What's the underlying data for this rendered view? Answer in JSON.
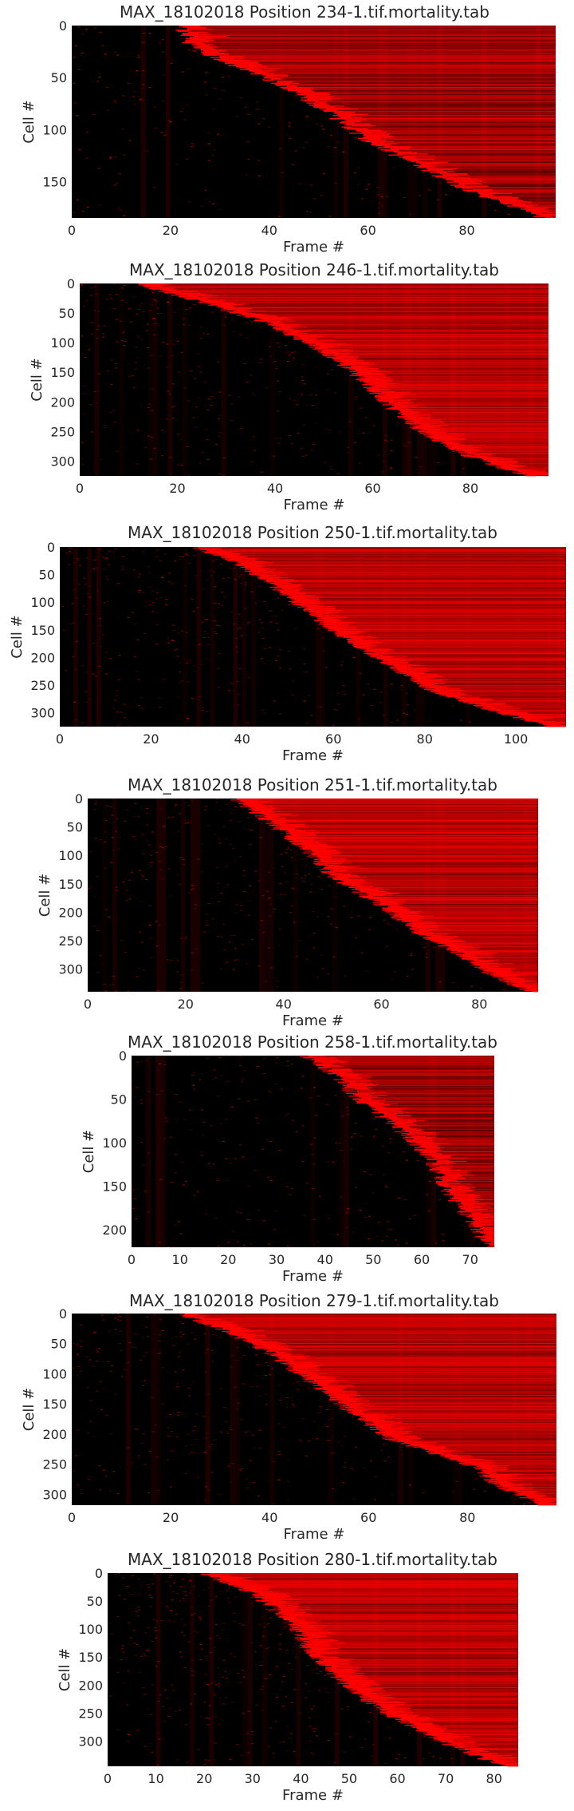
{
  "colors": {
    "background": "#000000",
    "event": "#ff0000"
  },
  "chart_data": [
    {
      "type": "heatmap",
      "title": "MAX_18102018 Position 234-1.tif.mortality.tab",
      "xlabel": "Frame #",
      "ylabel": "Cell #",
      "xlim": [
        0,
        98
      ],
      "ylim": [
        0,
        185
      ],
      "xticks": [
        0,
        20,
        40,
        60,
        80
      ],
      "yticks": [
        0,
        50,
        100,
        150
      ],
      "onset_curve": [
        [
          0,
          22
        ],
        [
          0.1,
          24
        ],
        [
          0.2,
          32
        ],
        [
          0.3,
          42
        ],
        [
          0.45,
          52
        ],
        [
          0.6,
          60
        ],
        [
          0.75,
          72
        ],
        [
          0.85,
          80
        ],
        [
          1.0,
          96
        ]
      ]
    },
    {
      "type": "heatmap",
      "title": "MAX_18102018 Position 246-1.tif.mortality.tab",
      "xlabel": "Frame #",
      "ylabel": "Cell #",
      "xlim": [
        0,
        96
      ],
      "ylim": [
        0,
        325
      ],
      "xticks": [
        0,
        20,
        40,
        60,
        80
      ],
      "yticks": [
        0,
        50,
        100,
        150,
        200,
        250,
        300
      ],
      "onset_curve": [
        [
          0,
          12
        ],
        [
          0.1,
          26
        ],
        [
          0.2,
          38
        ],
        [
          0.35,
          50
        ],
        [
          0.5,
          58
        ],
        [
          0.65,
          64
        ],
        [
          0.8,
          72
        ],
        [
          0.9,
          80
        ],
        [
          1.0,
          92
        ]
      ]
    },
    {
      "type": "heatmap",
      "title": "MAX_18102018 Position 250-1.tif.mortality.tab",
      "xlabel": "Frame #",
      "ylabel": "Cell #",
      "xlim": [
        0,
        111
      ],
      "ylim": [
        0,
        325
      ],
      "xticks": [
        0,
        20,
        40,
        60,
        80,
        100
      ],
      "yticks": [
        0,
        50,
        100,
        150,
        200,
        250,
        300
      ],
      "onset_curve": [
        [
          0,
          30
        ],
        [
          0.1,
          40
        ],
        [
          0.2,
          46
        ],
        [
          0.35,
          54
        ],
        [
          0.5,
          62
        ],
        [
          0.65,
          72
        ],
        [
          0.8,
          82
        ],
        [
          0.9,
          94
        ],
        [
          1.0,
          108
        ]
      ]
    },
    {
      "type": "heatmap",
      "title": "MAX_18102018 Position 251-1.tif.mortality.tab",
      "xlabel": "Frame #",
      "ylabel": "Cell #",
      "xlim": [
        0,
        92
      ],
      "ylim": [
        0,
        340
      ],
      "xticks": [
        0,
        20,
        40,
        60,
        80
      ],
      "yticks": [
        0,
        50,
        100,
        150,
        200,
        250,
        300
      ],
      "onset_curve": [
        [
          0,
          30
        ],
        [
          0.1,
          36
        ],
        [
          0.25,
          44
        ],
        [
          0.4,
          50
        ],
        [
          0.55,
          60
        ],
        [
          0.7,
          68
        ],
        [
          0.8,
          76
        ],
        [
          0.9,
          82
        ],
        [
          1.0,
          90
        ]
      ]
    },
    {
      "type": "heatmap",
      "title": "MAX_18102018 Position 258-1.tif.mortality.tab",
      "xlabel": "Frame #",
      "ylabel": "Cell #",
      "xlim": [
        0,
        75
      ],
      "ylim": [
        0,
        220
      ],
      "xticks": [
        0,
        10,
        20,
        30,
        40,
        50,
        60,
        70
      ],
      "yticks": [
        0,
        50,
        100,
        150,
        200
      ],
      "onset_curve": [
        [
          0,
          36
        ],
        [
          0.1,
          42
        ],
        [
          0.25,
          48
        ],
        [
          0.4,
          56
        ],
        [
          0.55,
          62
        ],
        [
          0.7,
          65
        ],
        [
          0.85,
          70
        ],
        [
          1.0,
          74
        ]
      ]
    },
    {
      "type": "heatmap",
      "title": "MAX_18102018 Position 279-1.tif.mortality.tab",
      "xlabel": "Frame #",
      "ylabel": "Cell #",
      "xlim": [
        0,
        98
      ],
      "ylim": [
        0,
        318
      ],
      "xticks": [
        0,
        20,
        40,
        60,
        80
      ],
      "yticks": [
        0,
        50,
        100,
        150,
        200,
        250,
        300
      ],
      "onset_curve": [
        [
          0,
          22
        ],
        [
          0.1,
          32
        ],
        [
          0.2,
          40
        ],
        [
          0.35,
          48
        ],
        [
          0.5,
          56
        ],
        [
          0.65,
          64
        ],
        [
          0.8,
          82
        ],
        [
          0.9,
          86
        ],
        [
          1.0,
          96
        ]
      ]
    },
    {
      "type": "heatmap",
      "title": "MAX_18102018 Position 280-1.tif.mortality.tab",
      "xlabel": "Frame #",
      "ylabel": "Cell #",
      "xlim": [
        0,
        85
      ],
      "ylim": [
        0,
        345
      ],
      "xticks": [
        0,
        10,
        20,
        30,
        40,
        50,
        60,
        70,
        80
      ],
      "yticks": [
        0,
        50,
        100,
        150,
        200,
        250,
        300
      ],
      "onset_curve": [
        [
          0,
          20
        ],
        [
          0.1,
          30
        ],
        [
          0.25,
          38
        ],
        [
          0.4,
          42
        ],
        [
          0.55,
          48
        ],
        [
          0.7,
          56
        ],
        [
          0.8,
          64
        ],
        [
          0.9,
          72
        ],
        [
          1.0,
          82
        ]
      ]
    }
  ]
}
